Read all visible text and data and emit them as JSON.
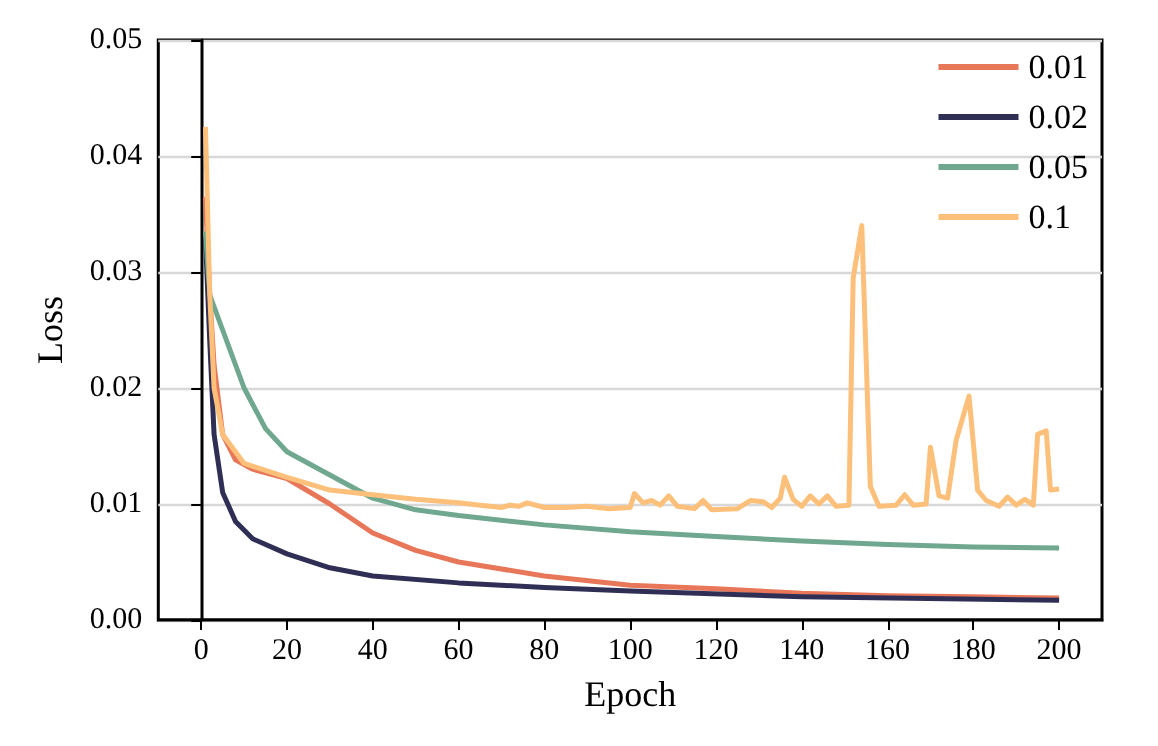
{
  "chart_data": {
    "type": "line",
    "xlabel": "Epoch",
    "ylabel": "Loss",
    "xlim": [
      -10,
      210
    ],
    "xticks": [
      0,
      20,
      40,
      60,
      80,
      100,
      120,
      140,
      160,
      180,
      200
    ],
    "ylim": [
      0,
      0.05
    ],
    "yticks": [
      {
        "value": 0,
        "label": "0.00"
      },
      0.01,
      0.02,
      0.03,
      0.04,
      0.05
    ],
    "grid": "y",
    "legend": "top right",
    "marker": "none",
    "line_style": "solid",
    "series": [
      {
        "name": "0.01",
        "color": "#e8775a",
        "x": [
          1,
          2,
          3,
          5,
          8,
          12,
          20,
          30,
          40,
          50,
          60,
          80,
          100,
          120,
          140,
          160,
          180,
          200
        ],
        "values": [
          0.0365,
          0.028,
          0.022,
          0.016,
          0.0138,
          0.013,
          0.0122,
          0.01,
          0.0075,
          0.006,
          0.005,
          0.0038,
          0.003,
          0.0027,
          0.0023,
          0.0021,
          0.002,
          0.0019
        ]
      },
      {
        "name": "0.02",
        "color": "#2f2f55",
        "x": [
          1,
          2,
          3,
          5,
          8,
          12,
          20,
          30,
          40,
          60,
          80,
          100,
          140,
          200
        ],
        "values": [
          0.033,
          0.024,
          0.016,
          0.011,
          0.0085,
          0.007,
          0.0057,
          0.0045,
          0.0038,
          0.0032,
          0.0028,
          0.0025,
          0.002,
          0.0017
        ]
      },
      {
        "name": "0.05",
        "color": "#6fa88e",
        "x": [
          1,
          2,
          5,
          10,
          15,
          20,
          30,
          40,
          50,
          60,
          80,
          100,
          120,
          140,
          160,
          180,
          200
        ],
        "values": [
          0.0335,
          0.028,
          0.025,
          0.02,
          0.0165,
          0.0145,
          0.0125,
          0.0105,
          0.0095,
          0.009,
          0.0082,
          0.0076,
          0.0072,
          0.0068,
          0.0065,
          0.0063,
          0.0062
        ]
      },
      {
        "name": "0.1",
        "color": "#fdc07a",
        "x": [
          1,
          2,
          3,
          5,
          10,
          20,
          30,
          40,
          50,
          60,
          65,
          70,
          72,
          74,
          76,
          80,
          85,
          90,
          95,
          100,
          101,
          103,
          105,
          107,
          109,
          111,
          115,
          117,
          119,
          125,
          128,
          131,
          133,
          135,
          136,
          138,
          140,
          142,
          144,
          146,
          148,
          151,
          152,
          154,
          156,
          158,
          162,
          164,
          166,
          169,
          170,
          172,
          174,
          176,
          179,
          181,
          183,
          186,
          188,
          190,
          192,
          194,
          195,
          197,
          198,
          200
        ],
        "values": [
          0.0425,
          0.028,
          0.02,
          0.016,
          0.0135,
          0.0123,
          0.0112,
          0.0108,
          0.0104,
          0.0101,
          0.0099,
          0.0097,
          0.0099,
          0.0098,
          0.0101,
          0.0097,
          0.0097,
          0.0098,
          0.0096,
          0.0097,
          0.0109,
          0.0101,
          0.0103,
          0.0099,
          0.0107,
          0.0098,
          0.0096,
          0.0103,
          0.0095,
          0.0096,
          0.0103,
          0.0102,
          0.0097,
          0.0105,
          0.0123,
          0.0104,
          0.0098,
          0.0107,
          0.01,
          0.0107,
          0.0098,
          0.0099,
          0.0295,
          0.034,
          0.0115,
          0.0098,
          0.0099,
          0.0108,
          0.0099,
          0.01,
          0.0149,
          0.0107,
          0.0105,
          0.0155,
          0.0193,
          0.0112,
          0.0103,
          0.0098,
          0.0106,
          0.0099,
          0.0104,
          0.0099,
          0.016,
          0.0163,
          0.0112,
          0.0113
        ]
      }
    ]
  }
}
